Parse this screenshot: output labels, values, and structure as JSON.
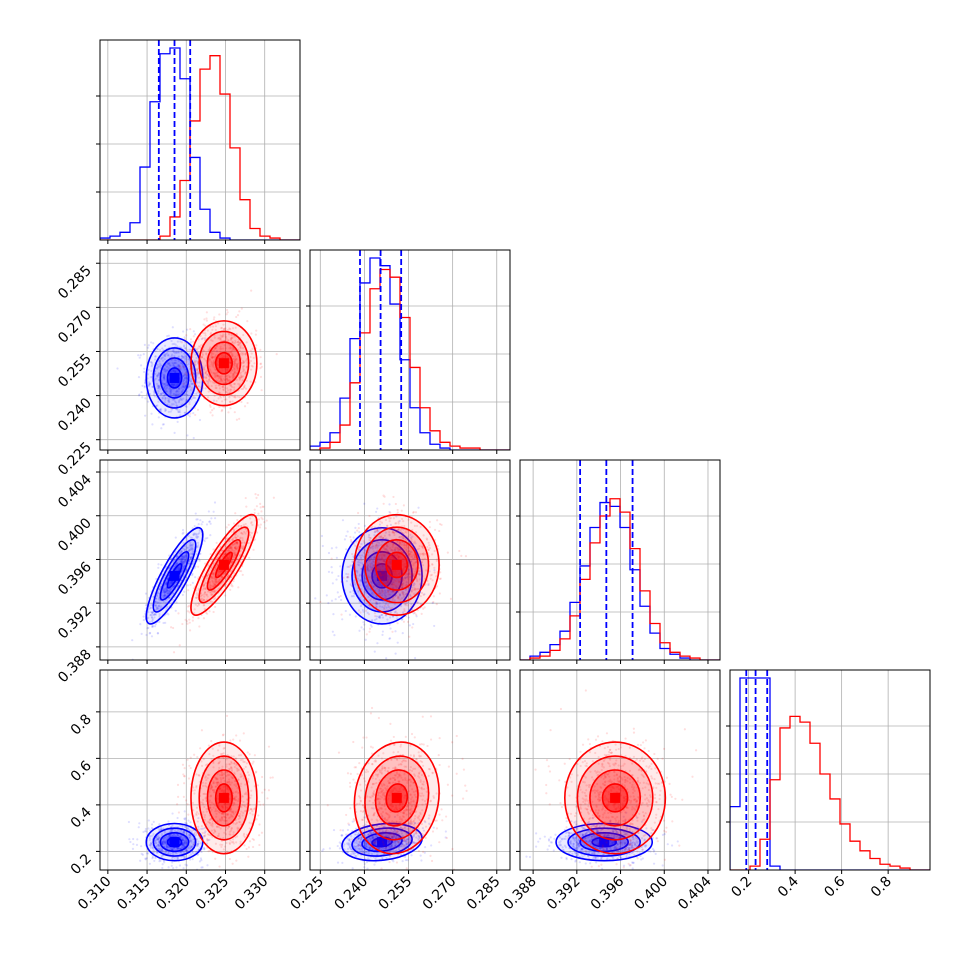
{
  "colors": {
    "series_a": "#0000ff",
    "series_b": "#ff0000",
    "grid": "#b0b0b0",
    "axes": "#000000"
  },
  "chart_data": {
    "type": "corner",
    "grid": true,
    "legend": "none",
    "series": [
      {
        "color": "#0000ff",
        "means": [
          0.3185,
          0.246,
          0.3945,
          0.24
        ],
        "sigmas": [
          0.0018,
          0.0068,
          0.0022,
          0.04
        ],
        "quantiles": [
          [
            0.3165,
            0.3185,
            0.3205
          ],
          [
            0.2385,
            0.2455,
            0.2525
          ],
          [
            0.3923,
            0.3947,
            0.3971
          ],
          [
            0.19,
            0.23,
            0.28
          ]
        ]
      },
      {
        "color": "#ff0000",
        "means": [
          0.3248,
          0.251,
          0.3955,
          0.43
        ],
        "sigmas": [
          0.0021,
          0.0072,
          0.0023,
          0.12
        ],
        "quantiles": null
      }
    ],
    "parameters": [
      {
        "range": [
          0.309,
          0.3345
        ],
        "ticks": [
          0.31,
          0.315,
          0.32,
          0.325,
          0.33
        ],
        "tick_labels": [
          "0.310",
          "0.315",
          "0.320",
          "0.325",
          "0.330"
        ]
      },
      {
        "range": [
          0.2215,
          0.2895
        ],
        "ticks": [
          0.225,
          0.24,
          0.255,
          0.27,
          0.285
        ],
        "tick_labels": [
          "0.225",
          "0.240",
          "0.255",
          "0.270",
          "0.285"
        ]
      },
      {
        "range": [
          0.3868,
          0.4051
        ],
        "ticks": [
          0.388,
          0.392,
          0.396,
          0.4,
          0.404
        ],
        "tick_labels": [
          "0.388",
          "0.392",
          "0.396",
          "0.400",
          "0.404"
        ]
      },
      {
        "range": [
          0.12,
          0.98
        ],
        "ticks": [
          0.2,
          0.4,
          0.6,
          0.8
        ],
        "tick_labels": [
          "0.2",
          "0.4",
          "0.6",
          "0.8"
        ]
      }
    ],
    "histograms": [
      {
        "parameter": 0,
        "edges": [
          0.309,
          0.310275,
          0.31155,
          0.312825,
          0.3141,
          0.315375,
          0.31665,
          0.317925,
          0.3192,
          0.320475,
          0.32175,
          0.323025,
          0.3243,
          0.325575,
          0.32685,
          0.328125,
          0.3294,
          0.330675,
          0.33195,
          0.333225,
          0.3345
        ],
        "series": [
          {
            "color": "#0000ff",
            "counts": [
              0.01,
              0.02,
              0.04,
              0.09,
              0.38,
              0.72,
              0.97,
              1.0,
              0.84,
              0.43,
              0.16,
              0.04,
              0.01,
              0.0,
              0.0,
              0.0,
              0.0,
              0.0,
              0.0,
              0.0
            ]
          },
          {
            "color": "#ff0000",
            "counts": [
              0.0,
              0.0,
              0.0,
              0.0,
              0.0,
              0.0,
              0.02,
              0.12,
              0.31,
              0.62,
              0.89,
              0.96,
              0.76,
              0.48,
              0.21,
              0.06,
              0.02,
              0.01,
              0.0,
              0.0
            ]
          }
        ]
      },
      {
        "parameter": 1,
        "edges": [
          0.2215,
          0.2249,
          0.2283,
          0.2317,
          0.2351,
          0.2385,
          0.2419,
          0.2453,
          0.2487,
          0.2521,
          0.2555,
          0.2589,
          0.2623,
          0.2657,
          0.2691,
          0.2725,
          0.2759,
          0.2793,
          0.2827,
          0.2861,
          0.2895
        ],
        "series": [
          {
            "color": "#0000ff",
            "counts": [
              0.02,
              0.04,
              0.09,
              0.27,
              0.58,
              0.87,
              1.0,
              0.96,
              0.76,
              0.47,
              0.22,
              0.09,
              0.03,
              0.01,
              0.0,
              0.0,
              0.0,
              0.0,
              0.0,
              0.0
            ]
          },
          {
            "color": "#ff0000",
            "counts": [
              0.0,
              0.01,
              0.04,
              0.13,
              0.35,
              0.61,
              0.84,
              0.94,
              0.9,
              0.69,
              0.43,
              0.22,
              0.1,
              0.04,
              0.02,
              0.01,
              0.01,
              0.0,
              0.0,
              0.0
            ]
          }
        ]
      },
      {
        "parameter": 2,
        "edges": [
          0.3868,
          0.387715,
          0.38863,
          0.389545,
          0.39046,
          0.391375,
          0.39229,
          0.393205,
          0.39412,
          0.395035,
          0.39595,
          0.396865,
          0.39778,
          0.398695,
          0.39961,
          0.400525,
          0.40144,
          0.402355,
          0.40327,
          0.404185,
          0.4051
        ],
        "series": [
          {
            "color": "#0000ff",
            "counts": [
              0.0,
              0.02,
              0.04,
              0.08,
              0.15,
              0.3,
              0.49,
              0.69,
              0.82,
              0.8,
              0.69,
              0.47,
              0.28,
              0.14,
              0.06,
              0.03,
              0.01,
              0.0,
              0.0,
              0.0
            ]
          },
          {
            "color": "#ff0000",
            "counts": [
              0.0,
              0.01,
              0.02,
              0.05,
              0.11,
              0.23,
              0.42,
              0.61,
              0.75,
              0.84,
              0.77,
              0.58,
              0.36,
              0.19,
              0.09,
              0.04,
              0.02,
              0.01,
              0.0,
              0.0
            ]
          }
        ]
      },
      {
        "parameter": 3,
        "edges": [
          0.12,
          0.163,
          0.206,
          0.249,
          0.292,
          0.335,
          0.378,
          0.421,
          0.464,
          0.507,
          0.55,
          0.593,
          0.636,
          0.679,
          0.722,
          0.765,
          0.808,
          0.851,
          0.894,
          0.937,
          0.98
        ],
        "series": [
          {
            "color": "#0000ff",
            "counts": [
              0.33,
              1.0,
              1.0,
              1.0,
              0.02,
              0.0,
              0.0,
              0.0,
              0.0,
              0.0,
              0.0,
              0.0,
              0.0,
              0.0,
              0.0,
              0.0,
              0.0,
              0.0,
              0.0,
              0.0
            ]
          },
          {
            "color": "#ff0000",
            "counts": [
              0.0,
              0.0,
              0.02,
              0.16,
              0.47,
              0.74,
              0.8,
              0.77,
              0.66,
              0.5,
              0.37,
              0.24,
              0.15,
              0.1,
              0.06,
              0.03,
              0.02,
              0.01,
              0.0,
              0.0
            ]
          }
        ]
      }
    ],
    "pairs": [
      {
        "x": 0,
        "y": 1,
        "correlations": [
          0.0,
          0.0
        ]
      },
      {
        "x": 0,
        "y": 2,
        "correlations": [
          0.85,
          0.85
        ]
      },
      {
        "x": 1,
        "y": 2,
        "correlations": [
          0.0,
          0.0
        ]
      },
      {
        "x": 0,
        "y": 3,
        "correlations": [
          0.0,
          0.0
        ]
      },
      {
        "x": 1,
        "y": 3,
        "correlations": [
          0.2,
          0.1
        ]
      },
      {
        "x": 2,
        "y": 3,
        "correlations": [
          0.0,
          0.0
        ]
      }
    ],
    "contour_levels_sigma": [
      0.5,
      1.0,
      1.5,
      2.0
    ]
  }
}
